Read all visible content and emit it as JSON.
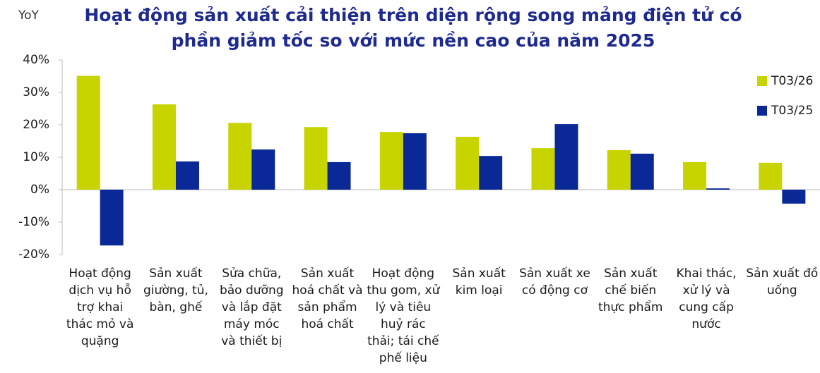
{
  "chart_data": {
    "type": "bar",
    "title": "Hoạt động sản xuất cải thiện trên diện rộng song mảng điện tử có phần giảm tốc so với mức nền cao của năm 2025",
    "y_label": "YoY",
    "categories": [
      "Hoạt động dịch vụ hỗ trợ khai thác mỏ và quặng",
      "Sản xuất giường, tủ, bàn, ghế",
      "Sửa chữa, bảo dưỡng và lắp đặt máy móc và thiết bị",
      "Sản xuất hoá chất và sản phẩm hoá chất",
      "Hoạt động thu gom, xử lý và tiêu huỷ rác thải; tái chế phế liệu",
      "Sản xuất kim loại",
      "Sản xuất xe có động cơ",
      "Sản xuất chế biến thực phẩm",
      "Khai thác, xử lý và cung cấp nước",
      "Sản xuất đồ uống"
    ],
    "series": [
      {
        "name": "T03/26",
        "color": "#c8d400",
        "values": [
          35.1,
          26.3,
          20.6,
          19.3,
          17.8,
          16.3,
          12.8,
          12.2,
          8.5,
          8.3
        ]
      },
      {
        "name": "T03/25",
        "color": "#0a2896",
        "values": [
          -17.2,
          8.7,
          12.4,
          8.5,
          17.4,
          10.4,
          20.2,
          11.1,
          0.4,
          -4.3
        ]
      }
    ],
    "ylim": [
      -20,
      40
    ],
    "yticks": [
      {
        "value": -20,
        "label": "-20%"
      },
      {
        "value": -10,
        "label": "-10%"
      },
      {
        "value": 0,
        "label": "0%"
      },
      {
        "value": 10,
        "label": "10%"
      },
      {
        "value": 20,
        "label": "20%"
      },
      {
        "value": 30,
        "label": "30%"
      },
      {
        "value": 40,
        "label": "40%"
      }
    ],
    "legend": "right"
  }
}
